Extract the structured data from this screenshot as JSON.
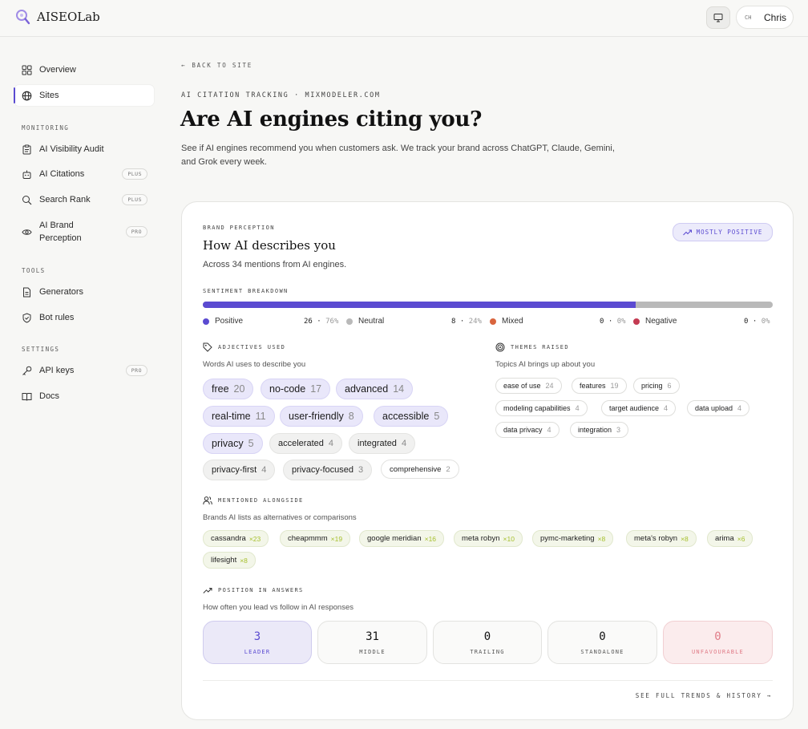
{
  "app": {
    "name": "AISEOLab"
  },
  "user": {
    "initials": "CH",
    "name": "Chris"
  },
  "sidebar": {
    "items": [
      {
        "label": "Overview",
        "icon": "grid-icon"
      },
      {
        "label": "Sites",
        "icon": "globe-icon",
        "active": true
      }
    ],
    "monitoring": {
      "heading": "MONITORING",
      "items": [
        {
          "label": "AI Visibility Audit",
          "icon": "clipboard-icon",
          "badge": ""
        },
        {
          "label": "AI Citations",
          "icon": "bot-icon",
          "badge": "PLUS"
        },
        {
          "label": "Search Rank",
          "icon": "search-icon",
          "badge": "PLUS"
        },
        {
          "label": "AI Brand Perception",
          "icon": "eye-icon",
          "badge": "PRO"
        }
      ]
    },
    "tools": {
      "heading": "TOOLS",
      "items": [
        {
          "label": "Generators",
          "icon": "document-icon",
          "badge": ""
        },
        {
          "label": "Bot rules",
          "icon": "shield-icon",
          "badge": ""
        }
      ]
    },
    "settings": {
      "heading": "SETTINGS",
      "items": [
        {
          "label": "API keys",
          "icon": "key-icon",
          "badge": "PRO"
        },
        {
          "label": "Docs",
          "icon": "book-icon",
          "badge": ""
        }
      ]
    }
  },
  "main": {
    "back_label": "BACK TO SITE",
    "eyebrow": "AI CITATION TRACKING · MIXMODELER.COM",
    "title": "Are AI engines citing you?",
    "subtitle": "See if AI engines recommend you when customers ask. We track your brand across ChatGPT, Claude, Gemini, and Grok every week."
  },
  "perception": {
    "eyebrow": "BRAND PERCEPTION",
    "title": "How AI describes you",
    "subtitle": "Across 34 mentions from AI engines.",
    "badge": "MOSTLY POSITIVE",
    "sentiment_heading": "SENTIMENT BREAKDOWN",
    "sentiment": [
      {
        "label": "Positive",
        "count": "26",
        "pct": "76%",
        "color": "#5b4bd1"
      },
      {
        "label": "Neutral",
        "count": "8",
        "pct": "24%",
        "color": "#b9b9b9"
      },
      {
        "label": "Mixed",
        "count": "0",
        "pct": "0%",
        "color": "#d9653e"
      },
      {
        "label": "Negative",
        "count": "0",
        "pct": "0%",
        "color": "#c43b52"
      }
    ],
    "positive_fraction": 0.76,
    "adjectives": {
      "heading": "ADJECTIVES USED",
      "subtitle": "Words AI uses to describe you",
      "items": [
        {
          "word": "free",
          "count": "20"
        },
        {
          "word": "no-code",
          "count": "17"
        },
        {
          "word": "advanced",
          "count": "14"
        },
        {
          "word": "real-time",
          "count": "11"
        },
        {
          "word": "user-friendly",
          "count": "8"
        },
        {
          "word": "accessible",
          "count": "5"
        },
        {
          "word": "privacy",
          "count": "5"
        },
        {
          "word": "accelerated",
          "count": "4"
        },
        {
          "word": "integrated",
          "count": "4"
        },
        {
          "word": "privacy-first",
          "count": "4"
        },
        {
          "word": "privacy-focused",
          "count": "3"
        },
        {
          "word": "comprehensive",
          "count": "2"
        }
      ]
    },
    "themes": {
      "heading": "THEMES RAISED",
      "subtitle": "Topics AI brings up about you",
      "items": [
        {
          "word": "ease of use",
          "count": "24"
        },
        {
          "word": "features",
          "count": "19"
        },
        {
          "word": "pricing",
          "count": "6"
        },
        {
          "word": "modeling capabilities",
          "count": "4"
        },
        {
          "word": "target audience",
          "count": "4"
        },
        {
          "word": "data upload",
          "count": "4"
        },
        {
          "word": "data privacy",
          "count": "4"
        },
        {
          "word": "integration",
          "count": "3"
        }
      ]
    },
    "alongside": {
      "heading": "MENTIONED ALONGSIDE",
      "subtitle": "Brands AI lists as alternatives or comparisons",
      "items": [
        {
          "word": "cassandra",
          "count": "×23"
        },
        {
          "word": "cheapmmm",
          "count": "×19"
        },
        {
          "word": "google meridian",
          "count": "×16"
        },
        {
          "word": "meta robyn",
          "count": "×10"
        },
        {
          "word": "pymc-marketing",
          "count": "×8"
        },
        {
          "word": "meta's robyn",
          "count": "×8"
        },
        {
          "word": "arima",
          "count": "×6"
        },
        {
          "word": "lifesight",
          "count": "×8"
        }
      ]
    },
    "position": {
      "heading": "POSITION IN ANSWERS",
      "subtitle": "How often you lead vs follow in AI responses",
      "items": [
        {
          "value": "3",
          "label": "LEADER"
        },
        {
          "value": "31",
          "label": "MIDDLE"
        },
        {
          "value": "0",
          "label": "TRAILING"
        },
        {
          "value": "0",
          "label": "STANDALONE"
        },
        {
          "value": "0",
          "label": "UNFAVOURABLE"
        }
      ]
    },
    "trends_link": "SEE FULL TRENDS & HISTORY"
  }
}
